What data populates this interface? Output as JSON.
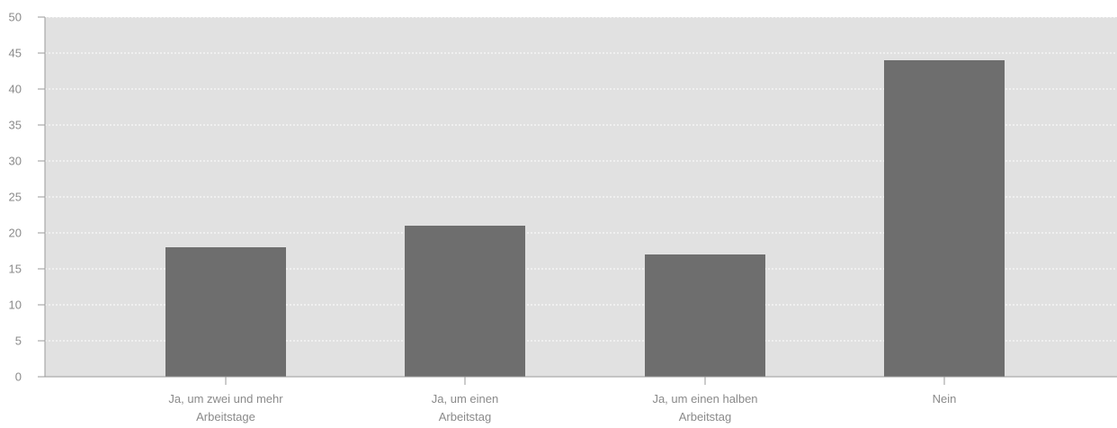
{
  "chart_data": {
    "type": "bar",
    "title": "",
    "xlabel": "",
    "ylabel": "",
    "categories": [
      [
        "Ja, um zwei und mehr",
        "Arbeitstage"
      ],
      [
        "Ja, um einen",
        "Arbeitstag"
      ],
      [
        "Ja, um einen halben",
        "Arbeitstag"
      ],
      [
        "Nein"
      ]
    ],
    "values": [
      18,
      21,
      17,
      44
    ],
    "ylim": [
      0,
      50
    ],
    "yticks": [
      0,
      5,
      10,
      15,
      20,
      25,
      30,
      35,
      40,
      45,
      50
    ],
    "grid": true,
    "colors": {
      "plot_background": "#e1e1e1",
      "bar": "#6e6e6e",
      "gridline": "#ffffff",
      "axis": "#9a9a9a",
      "text": "#8a8a8a"
    }
  }
}
